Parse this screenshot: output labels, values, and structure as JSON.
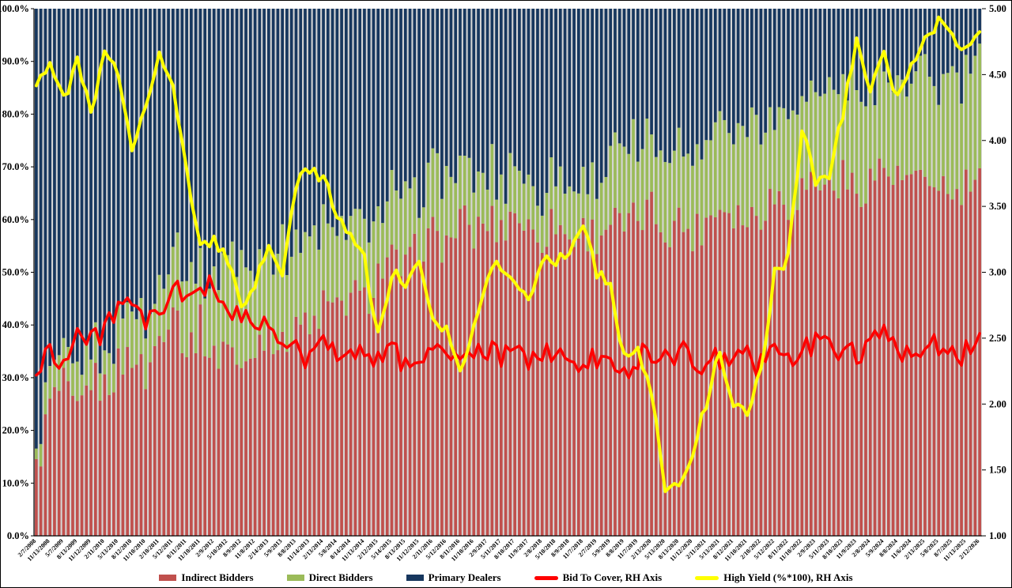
{
  "figure": {
    "background": "#FFFFFF",
    "border_color": "#000000",
    "plot_background": "#D6D6D6",
    "axis_color": "#000000"
  },
  "chart_data": {
    "type": "combo-stacked-bar-and-line",
    "title": "",
    "xlabel": "",
    "ylabel": "",
    "grid": "off",
    "legend_position": "bottom",
    "left_axis": {
      "min": 0,
      "max": 100,
      "format": "percent",
      "tick_labels": [
        "100.0%",
        "90.0%",
        "80.0%",
        "70.0%",
        "60.0%",
        "50.0%",
        "40.0%",
        "30.0%",
        "20.0%",
        "10.0%",
        "0.0%"
      ]
    },
    "right_axis": {
      "min": 1.0,
      "max": 5.0,
      "tick_labels": [
        "5.00",
        "4.50",
        "4.00",
        "3.50",
        "3.00",
        "2.50",
        "2.00",
        "1.50",
        "1.00"
      ]
    },
    "x_tick_labels": [
      "2/7/2008",
      "11/13/2008",
      "5/7/2009",
      "8/13/2009",
      "11/12/2009",
      "2/11/2010",
      "5/13/2010",
      "8/12/2010",
      "11/10/2010",
      "2/10/2011",
      "5/12/2011",
      "8/11/2011",
      "11/10/2011",
      "2/9/2012",
      "5/10/2012",
      "8/9/2012",
      "11/8/2012",
      "2/14/2013",
      "5/9/2013",
      "8/8/2013",
      "11/14/2013",
      "2/13/2014",
      "5/8/2014",
      "8/14/2014",
      "11/13/2014",
      "2/12/2015",
      "5/14/2015",
      "8/13/2015",
      "11/12/2015",
      "2/11/2016",
      "5/12/2016",
      "8/11/2016",
      "11/10/2016",
      "2/9/2017",
      "5/11/2017",
      "8/10/2017",
      "11/9/2017",
      "2/8/2018",
      "5/10/2018",
      "8/9/2018",
      "11/7/2018",
      "2/7/2019",
      "5/9/2019",
      "8/8/2019",
      "11/7/2019",
      "2/13/2020",
      "5/13/2020",
      "8/13/2020",
      "11/12/2020",
      "2/11/2021",
      "5/13/2021",
      "8/12/2021",
      "11/10/2021",
      "2/10/2022",
      "5/12/2022",
      "8/11/2022",
      "11/10/2022",
      "2/9/2023",
      "5/11/2023",
      "8/10/2023",
      "11/9/2023",
      "2/8/2024",
      "5/9/2024",
      "8/8/2024",
      "11/6/2024",
      "2/13/2025",
      "5/8/2025",
      "8/7/2025",
      "11/13/2025",
      "2/12/2026"
    ],
    "bars_per_tick": 3,
    "display_hints": {
      "bar_fill_ratio": 0.64,
      "bar_jitter_pct": 4,
      "direct_jitter_pct": 2.5,
      "btc_jitter": 0.1,
      "yield_jitter": 0.05,
      "line_width": 3.5
    },
    "series": [
      {
        "name": "Indirect Bidders",
        "type": "bar-stacked",
        "axis": "left",
        "color": "#C0504D",
        "values_pct": [
          12,
          25,
          28,
          22,
          30,
          28,
          32,
          35,
          30,
          38,
          45,
          35,
          40,
          33,
          38,
          30,
          36,
          40,
          35,
          42,
          38,
          44,
          42,
          46,
          44,
          50,
          52,
          50,
          55,
          57,
          55,
          60,
          57,
          60,
          58,
          62,
          58,
          57,
          60,
          56,
          58,
          57,
          60,
          58,
          60,
          62,
          58,
          60,
          57,
          60,
          63,
          62,
          60,
          62,
          65,
          63,
          66,
          68,
          66,
          68,
          65,
          68,
          70,
          67,
          68,
          65,
          68,
          63,
          66,
          68
        ]
      },
      {
        "name": "Direct Bidders",
        "type": "bar-stacked",
        "axis": "left",
        "color": "#9BBB59",
        "values_pct": [
          4,
          5,
          5,
          6,
          6,
          7,
          8,
          9,
          10,
          10,
          12,
          14,
          12,
          15,
          17,
          20,
          17,
          16,
          18,
          15,
          17,
          16,
          14,
          16,
          14,
          13,
          12,
          13,
          11,
          12,
          13,
          11,
          12,
          9,
          10,
          8,
          10,
          9,
          9,
          10,
          9,
          11,
          13,
          14,
          13,
          13,
          14,
          15,
          14,
          16,
          17,
          18,
          17,
          17,
          16,
          18,
          17,
          16,
          18,
          17,
          19,
          17,
          16,
          18,
          17,
          21,
          18,
          23,
          20,
          22
        ]
      },
      {
        "name": "Primary Dealers",
        "type": "bar-stacked",
        "axis": "left",
        "color": "#17375E",
        "values_pct": [
          84,
          70,
          67,
          72,
          64,
          65,
          60,
          56,
          60,
          52,
          43,
          51,
          48,
          52,
          45,
          50,
          47,
          44,
          47,
          43,
          45,
          40,
          44,
          38,
          42,
          37,
          36,
          37,
          34,
          31,
          32,
          29,
          31,
          31,
          32,
          30,
          32,
          34,
          31,
          34,
          33,
          32,
          27,
          28,
          27,
          25,
          28,
          25,
          29,
          24,
          20,
          20,
          23,
          21,
          19,
          19,
          17,
          16,
          16,
          15,
          16,
          15,
          14,
          15,
          15,
          14,
          14,
          14,
          14,
          10
        ]
      },
      {
        "name": "Bid To Cover, RH Axis",
        "type": "line",
        "axis": "right",
        "color": "#FF0000",
        "values": [
          2.2,
          2.45,
          2.3,
          2.55,
          2.45,
          2.6,
          2.75,
          2.7,
          2.6,
          2.65,
          2.9,
          2.75,
          2.95,
          2.85,
          2.75,
          2.6,
          2.65,
          2.55,
          2.45,
          2.4,
          2.35,
          2.45,
          2.4,
          2.45,
          2.4,
          2.35,
          2.4,
          2.3,
          2.35,
          2.45,
          2.4,
          2.3,
          2.35,
          2.4,
          2.35,
          2.4,
          2.35,
          2.4,
          2.35,
          2.3,
          2.3,
          2.35,
          2.3,
          2.25,
          2.35,
          2.4,
          2.35,
          2.4,
          2.35,
          2.3,
          2.35,
          2.3,
          2.35,
          2.3,
          2.4,
          2.35,
          2.4,
          2.45,
          2.4,
          2.45,
          2.4,
          2.45,
          2.5,
          2.4,
          2.45,
          2.4,
          2.45,
          2.35,
          2.4,
          2.55
        ]
      },
      {
        "name": "High Yield (%*100), RH Axis",
        "type": "line",
        "axis": "right",
        "color": "#FFFF00",
        "values": [
          4.45,
          4.6,
          4.3,
          4.6,
          4.2,
          4.65,
          4.5,
          3.95,
          4.3,
          4.65,
          4.4,
          3.75,
          3.2,
          3.25,
          3.1,
          2.7,
          2.9,
          3.2,
          3.0,
          3.65,
          3.8,
          3.7,
          3.45,
          3.3,
          3.1,
          2.5,
          3.0,
          2.9,
          3.05,
          2.6,
          2.6,
          2.25,
          2.6,
          3.0,
          3.05,
          2.9,
          2.8,
          3.1,
          3.1,
          3.1,
          3.4,
          3.0,
          2.9,
          2.35,
          2.4,
          2.1,
          1.3,
          1.4,
          1.65,
          2.0,
          2.4,
          2.0,
          1.9,
          2.25,
          3.0,
          3.1,
          4.1,
          3.7,
          3.75,
          4.2,
          4.77,
          4.36,
          4.64,
          4.3,
          4.6,
          4.75,
          4.9,
          4.8,
          4.7,
          4.85
        ]
      }
    ]
  }
}
